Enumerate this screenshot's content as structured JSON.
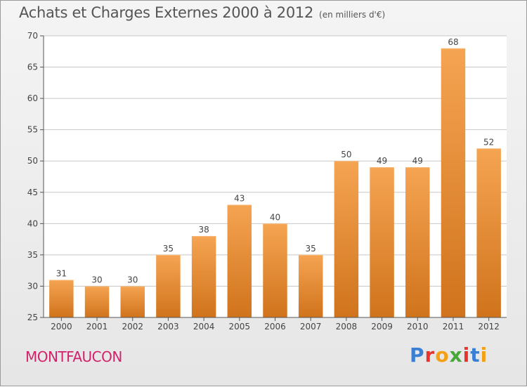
{
  "header": {
    "title": "Achats et Charges Externes 2000 à 2012",
    "subtitle": "(en milliers d'€)"
  },
  "footer": {
    "town": "MONTFAUCON",
    "brand": "Proxiti",
    "brand_letter_colors": [
      "#3a7fd6",
      "#e8342c",
      "#f3a014",
      "#4aa83b",
      "#e8342c",
      "#3a7fd6",
      "#f3a014"
    ]
  },
  "chart_data": {
    "type": "bar",
    "categories": [
      "2000",
      "2001",
      "2002",
      "2003",
      "2004",
      "2005",
      "2006",
      "2007",
      "2008",
      "2009",
      "2010",
      "2011",
      "2012"
    ],
    "values": [
      31,
      30,
      30,
      35,
      38,
      43,
      40,
      35,
      50,
      49,
      49,
      68,
      52
    ],
    "ylim": [
      25,
      70
    ],
    "yticks": [
      25,
      30,
      35,
      40,
      45,
      50,
      55,
      60,
      65,
      70
    ],
    "grid": true,
    "colors": {
      "bar_top": "#f5a452",
      "bar_bottom": "#d0731c",
      "grid": "#c8c8c8",
      "axis": "#555555"
    }
  }
}
